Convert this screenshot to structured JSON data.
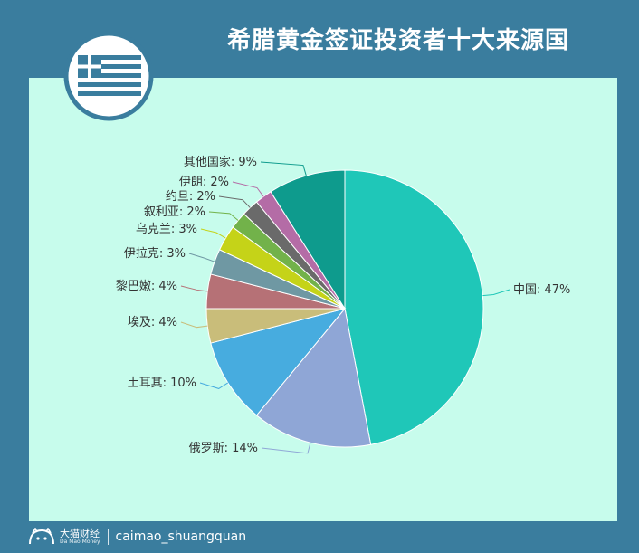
{
  "header": {
    "title": "希腊黄金签证投资者十大来源国"
  },
  "footer": {
    "brand": "大猫财经",
    "brand_sub": "Da Mao Money",
    "handle": "caimao_shuangquan"
  },
  "colors": {
    "frame": "#3a7d9e",
    "panel": "#c7fcec",
    "flag_blue": "#3a7d9e"
  },
  "chart_data": {
    "type": "pie",
    "title": "",
    "slices": [
      {
        "label": "中国",
        "value": 47,
        "color": "#1fc7b8"
      },
      {
        "label": "俄罗斯",
        "value": 14,
        "color": "#8fa6d6"
      },
      {
        "label": "土耳其",
        "value": 10,
        "color": "#47acdf"
      },
      {
        "label": "埃及",
        "value": 4,
        "color": "#c9bd7a"
      },
      {
        "label": "黎巴嫩",
        "value": 4,
        "color": "#b67176"
      },
      {
        "label": "伊拉克",
        "value": 3,
        "color": "#6f98a3"
      },
      {
        "label": "乌克兰",
        "value": 3,
        "color": "#c5d318"
      },
      {
        "label": "叙利亚",
        "value": 2,
        "color": "#72b24a"
      },
      {
        "label": "约旦",
        "value": 2,
        "color": "#6a6a6a"
      },
      {
        "label": "伊朗",
        "value": 2,
        "color": "#b46ca6"
      },
      {
        "label": "其他国家",
        "value": 9,
        "color": "#0e9b8d"
      }
    ]
  }
}
